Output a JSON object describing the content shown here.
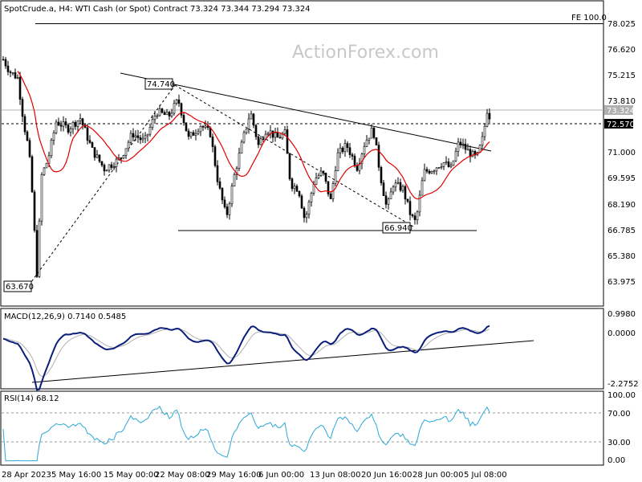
{
  "chart_data": {
    "type": "candlestick",
    "title": "SpotCrude.a, H4:  WTI Cash (or Spot) Contract  73.324 73.344 73.294 73.324",
    "watermark": "ActionForex.com",
    "price_panel": {
      "ylim": [
        63.0,
        79.0
      ],
      "ticks": [
        "78.025",
        "76.620",
        "75.215",
        "73.810",
        "72.570",
        "71.000",
        "69.595",
        "68.190",
        "66.785",
        "65.380",
        "63.975"
      ],
      "current_price": "73.324",
      "marked_level": "72.570",
      "fe_label": "FE 100.0",
      "fe_level": 78.3,
      "labels": [
        {
          "text": "74.740",
          "x": "22 May",
          "value": 74.74
        },
        {
          "text": "66.940",
          "x": "26 Jun",
          "value": 66.94
        },
        {
          "text": "63.670",
          "x": "3 May",
          "value": 63.67
        }
      ],
      "moving_average_color": "#e00000",
      "candle_up_color": "#000000",
      "candle_down_color": "#000000"
    },
    "macd_panel": {
      "label": "MACD(12,26,9) 0.7140 0.5485",
      "ylim": [
        -2.6,
        1.4
      ],
      "ticks": [
        "0.9980",
        "0.0000",
        "-2.2752"
      ],
      "macd_color": "#0a1e7a",
      "signal_color": "#b0b0b0"
    },
    "rsi_panel": {
      "label": "RSI(14) 68.12",
      "ylim": [
        0,
        100
      ],
      "ticks": [
        "100.00",
        "70.00",
        "30.00",
        "0.00"
      ],
      "color": "#2aa8d6"
    },
    "x_labels": [
      "28 Apr 2023",
      "5 May 16:00",
      "15 May 00:00",
      "22 May 08:00",
      "29 May 16:00",
      "6 Jun 00:00",
      "13 Jun 08:00",
      "20 Jun 16:00",
      "28 Jun 00:00",
      "5 Jul 08:00"
    ]
  }
}
